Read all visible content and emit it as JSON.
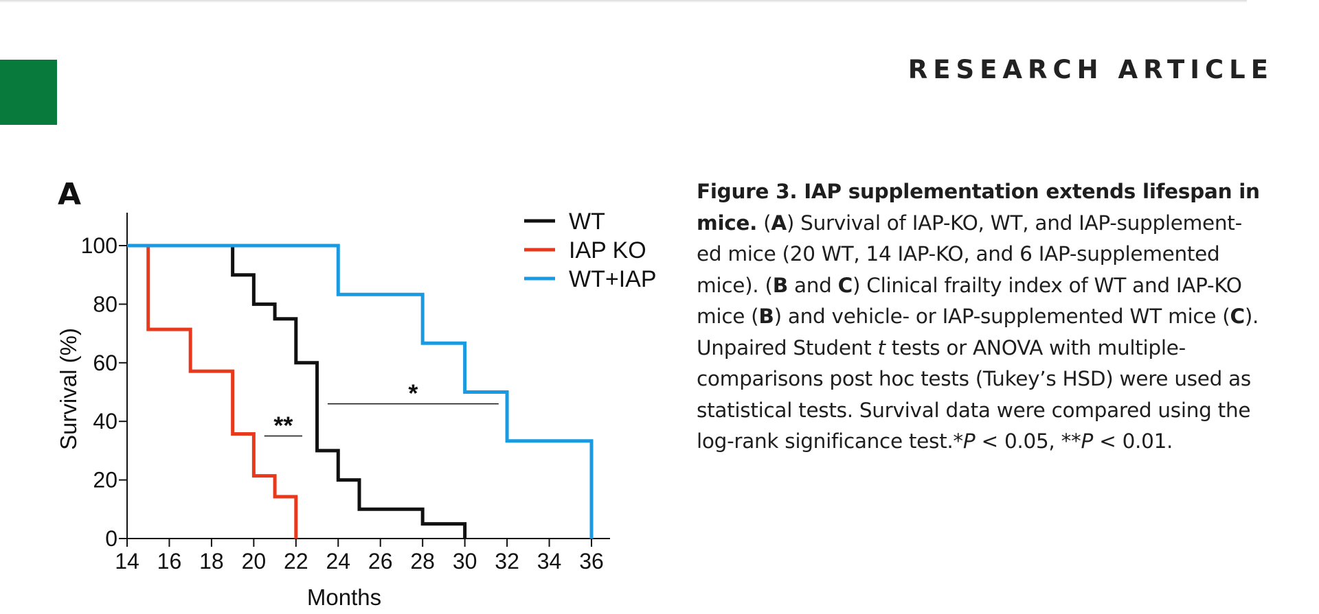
{
  "header": {
    "label": "RESEARCH ARTICLE",
    "tab_color": "#087a3b"
  },
  "panel_letter": "A",
  "chart_data": {
    "type": "line",
    "step": true,
    "xlabel": "Months",
    "ylabel": "Survival (%)",
    "xlim": [
      14,
      37
    ],
    "ylim": [
      0,
      110
    ],
    "xticks": [
      14,
      16,
      18,
      20,
      22,
      24,
      26,
      28,
      30,
      32,
      34,
      36
    ],
    "yticks": [
      0,
      20,
      40,
      60,
      80,
      100
    ],
    "legend_position": "top-right",
    "series": [
      {
        "name": "WT",
        "color": "#111111",
        "x": [
          14,
          19,
          20,
          21,
          22,
          23,
          24,
          25,
          28,
          30,
          30
        ],
        "y": [
          100,
          90,
          80,
          75,
          60,
          30,
          20,
          10,
          5,
          0,
          0
        ]
      },
      {
        "name": "IAP KO",
        "color": "#e8391c",
        "x": [
          14,
          15,
          17,
          19,
          20,
          21,
          22,
          22
        ],
        "y": [
          100,
          71.4,
          57.1,
          35.7,
          21.4,
          14.3,
          0,
          0
        ]
      },
      {
        "name": "WT+IAP",
        "color": "#1a9ae0",
        "x": [
          14,
          24,
          28,
          30,
          32,
          36,
          36
        ],
        "y": [
          100,
          83.3,
          66.7,
          50,
          33.3,
          0,
          0
        ]
      }
    ],
    "annotations": [
      {
        "text": "**",
        "x1": 20.5,
        "x2": 22.3,
        "y": 35
      },
      {
        "text": "*",
        "x1": 23.5,
        "x2": 31.6,
        "y": 46
      }
    ]
  },
  "caption": {
    "lines": [
      [
        {
          "text": "Figure 3. IAP supplementation extends lifespan in",
          "b": true
        }
      ],
      [
        {
          "text": "mice.",
          "b": true
        },
        {
          "text": " ("
        },
        {
          "text": "A",
          "b": true
        },
        {
          "text": ") Survival of IAP-KO, WT, and IAP-supplement-"
        }
      ],
      [
        {
          "text": "ed mice (20 WT, 14 IAP-KO, and 6 IAP-supplemented"
        }
      ],
      [
        {
          "text": "mice). ("
        },
        {
          "text": "B",
          "b": true
        },
        {
          "text": " and "
        },
        {
          "text": "C",
          "b": true
        },
        {
          "text": ") Clinical frailty index of WT and IAP-KO"
        }
      ],
      [
        {
          "text": "mice ("
        },
        {
          "text": "B",
          "b": true
        },
        {
          "text": ") and vehicle- or IAP-supplemented WT mice ("
        },
        {
          "text": "C",
          "b": true
        },
        {
          "text": ")."
        }
      ],
      [
        {
          "text": "Unpaired Student "
        },
        {
          "text": "t",
          "i": true
        },
        {
          "text": " tests or ANOVA with multiple-"
        }
      ],
      [
        {
          "text": "comparisons post hoc tests (Tukey’s HSD) were used as"
        }
      ],
      [
        {
          "text": "statistical tests. Survival data were compared using the"
        }
      ],
      [
        {
          "text": "log-rank significance test.*"
        },
        {
          "text": "P",
          "i": true
        },
        {
          "text": " < 0.05, **"
        },
        {
          "text": "P",
          "i": true
        },
        {
          "text": " < 0.01."
        }
      ]
    ]
  }
}
